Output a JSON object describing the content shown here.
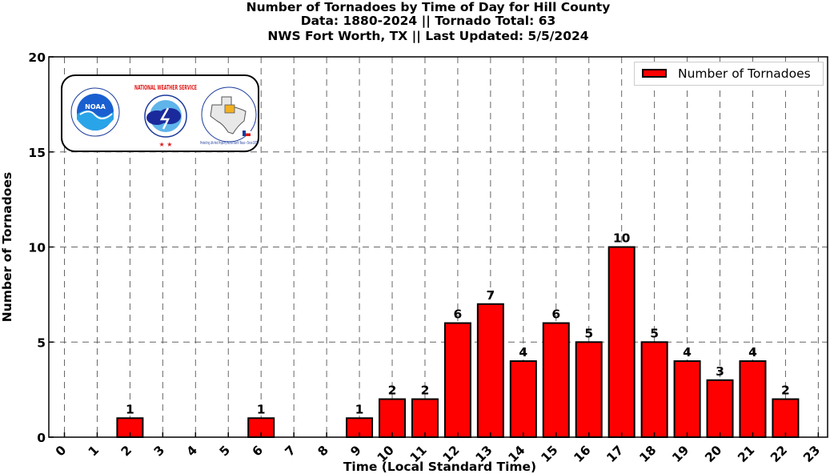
{
  "title": {
    "line1": "Number of Tornadoes by Time of Day for Hill County",
    "line2": "Data: 1880-2024 || Tornado Total: 63",
    "line3": "NWS Fort Worth, TX || Last Updated: 5/5/2024"
  },
  "legend": {
    "label": "Number of Tornadoes"
  },
  "logos": {
    "noaa": "NOAA",
    "nws": "NATIONAL WEATHER SERVICE",
    "nws_fort_worth": "Protecting Life And Property Across North Texas • Since 1870"
  },
  "colors": {
    "bar": "#ff0000",
    "edge": "#000000",
    "grid": "#666666"
  },
  "chart_data": {
    "type": "bar",
    "title": "Number of Tornadoes by Time of Day for Hill County",
    "xlabel": "Time (Local Standard Time)",
    "ylabel": "Number of Tornadoes",
    "categories": [
      "0",
      "1",
      "2",
      "3",
      "4",
      "5",
      "6",
      "7",
      "8",
      "9",
      "10",
      "11",
      "12",
      "13",
      "14",
      "15",
      "16",
      "17",
      "18",
      "19",
      "20",
      "21",
      "22",
      "23"
    ],
    "series": [
      {
        "name": "Number of Tornadoes",
        "values": [
          0,
          0,
          1,
          0,
          0,
          0,
          1,
          0,
          0,
          1,
          2,
          2,
          6,
          7,
          4,
          6,
          5,
          10,
          5,
          4,
          3,
          4,
          2,
          0
        ]
      }
    ],
    "ylim": [
      0,
      20
    ],
    "yticks": [
      0,
      5,
      10,
      15,
      20
    ],
    "grid": true,
    "legend_position": "top-right",
    "data_labels": true
  }
}
